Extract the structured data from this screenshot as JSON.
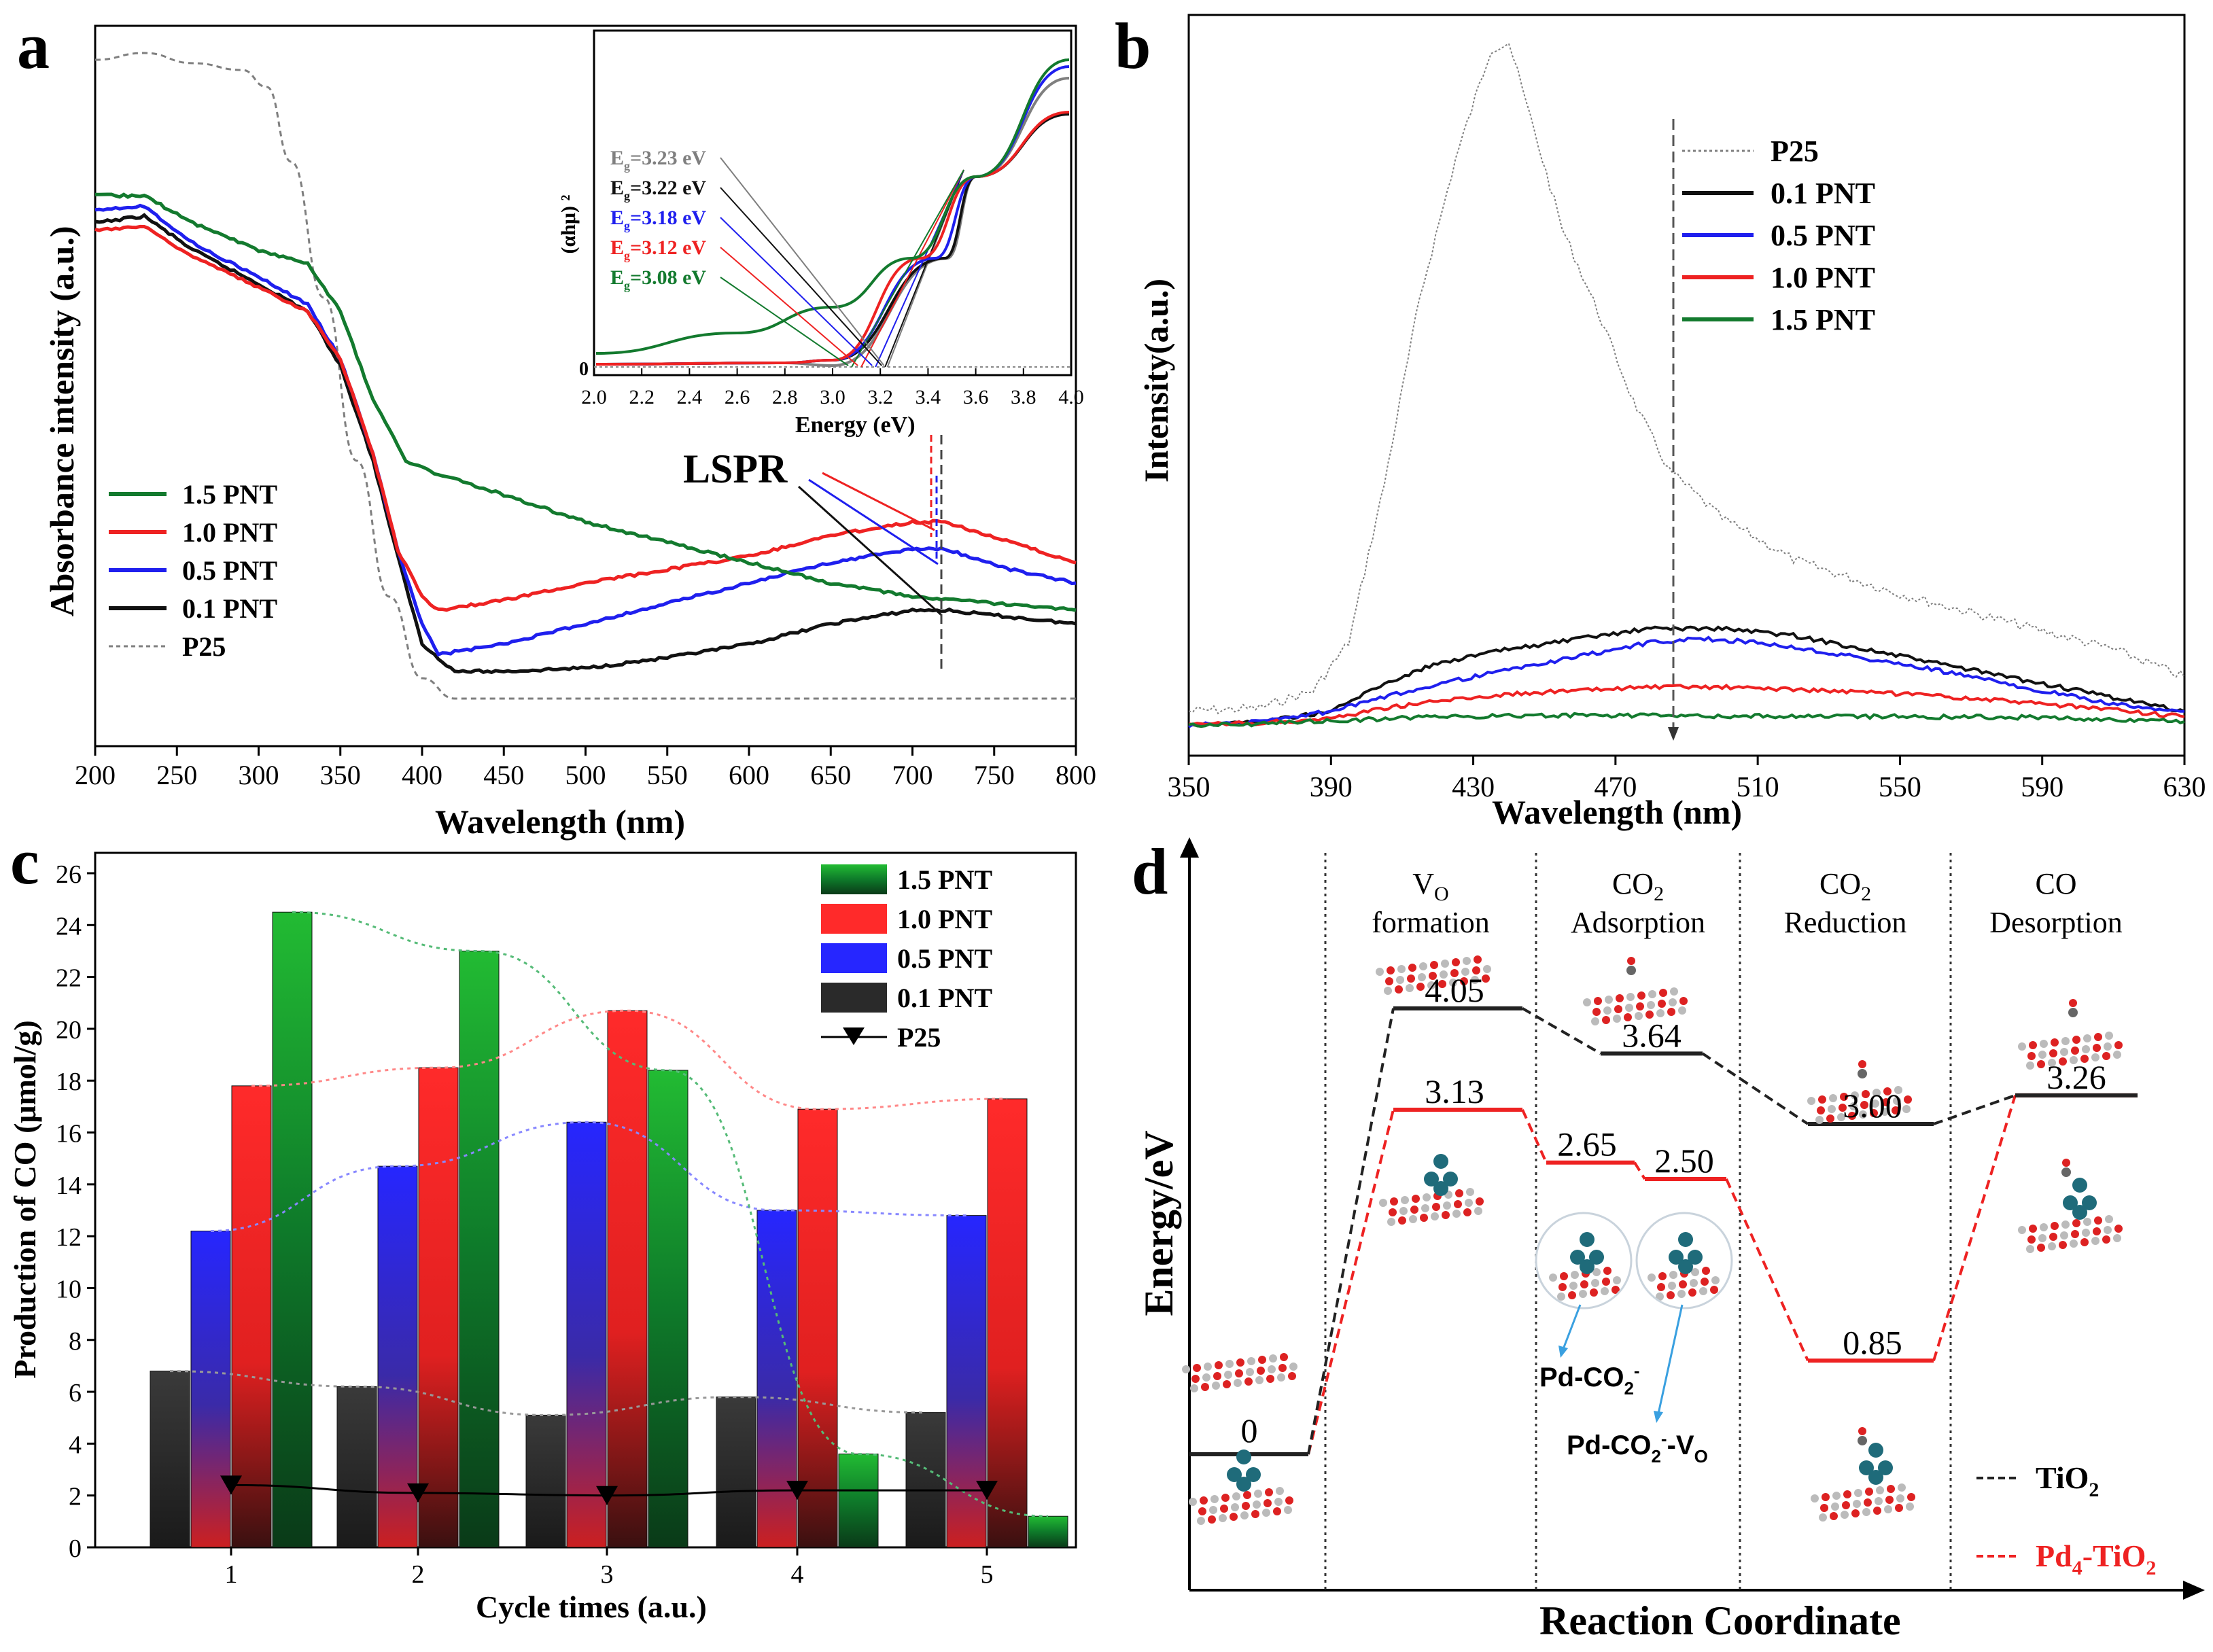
{
  "colors": {
    "p25": "#7f7f7f",
    "pnt01": "#111111",
    "pnt05": "#1f1fee",
    "pnt10": "#ee2222",
    "pnt15": "#137a2e",
    "arrow_blue": "#3aa0e0",
    "tio2": "#222222",
    "pd4": "#ee2222"
  },
  "panel_letters": {
    "a": "a",
    "b": "b",
    "c": "c",
    "d": "d"
  },
  "chart_data": [
    {
      "id": "a",
      "type": "line",
      "xlabel": "Wavelength (nm)",
      "ylabel": "Absorbance intensity (a.u.)",
      "xlim": [
        200,
        800
      ],
      "ylim": [
        0,
        1.0
      ],
      "xticks": [
        "200",
        "250",
        "300",
        "350",
        "400",
        "450",
        "500",
        "550",
        "600",
        "650",
        "700",
        "750",
        "800"
      ],
      "legend": [
        "1.5 PNT",
        "1.0 PNT",
        "0.5 PNT",
        "0.1 PNT",
        "P25"
      ],
      "annotation": "LSPR",
      "series": [
        {
          "name": "P25",
          "x": [
            200,
            230,
            260,
            290,
            305,
            320,
            340,
            360,
            380,
            400,
            420,
            450,
            500,
            600,
            700,
            800
          ],
          "y": [
            0.97,
            0.98,
            0.965,
            0.955,
            0.93,
            0.82,
            0.62,
            0.38,
            0.18,
            0.06,
            0.03,
            0.03,
            0.03,
            0.03,
            0.03,
            0.03
          ]
        },
        {
          "name": "0.1 PNT",
          "x": [
            200,
            230,
            260,
            300,
            330,
            350,
            370,
            385,
            400,
            420,
            450,
            500,
            550,
            600,
            650,
            700,
            720,
            760,
            800
          ],
          "y": [
            0.73,
            0.74,
            0.69,
            0.64,
            0.6,
            0.52,
            0.38,
            0.24,
            0.11,
            0.07,
            0.07,
            0.075,
            0.09,
            0.11,
            0.14,
            0.16,
            0.16,
            0.15,
            0.14
          ]
        },
        {
          "name": "0.5 PNT",
          "x": [
            200,
            230,
            260,
            300,
            330,
            350,
            370,
            385,
            400,
            410,
            450,
            500,
            550,
            600,
            650,
            700,
            720,
            760,
            800
          ],
          "y": [
            0.75,
            0.755,
            0.7,
            0.65,
            0.61,
            0.53,
            0.39,
            0.25,
            0.14,
            0.095,
            0.11,
            0.14,
            0.17,
            0.2,
            0.23,
            0.25,
            0.25,
            0.22,
            0.2
          ]
        },
        {
          "name": "1.0 PNT",
          "x": [
            200,
            230,
            260,
            300,
            330,
            350,
            370,
            385,
            400,
            410,
            450,
            500,
            550,
            600,
            650,
            700,
            720,
            760,
            800
          ],
          "y": [
            0.72,
            0.725,
            0.68,
            0.635,
            0.6,
            0.53,
            0.39,
            0.25,
            0.18,
            0.16,
            0.175,
            0.2,
            0.22,
            0.24,
            0.27,
            0.29,
            0.29,
            0.26,
            0.23
          ]
        },
        {
          "name": "1.5 PNT",
          "x": [
            200,
            230,
            260,
            300,
            330,
            350,
            370,
            390,
            410,
            450,
            500,
            550,
            600,
            650,
            700,
            750,
            800
          ],
          "y": [
            0.77,
            0.77,
            0.73,
            0.69,
            0.67,
            0.6,
            0.47,
            0.38,
            0.36,
            0.33,
            0.29,
            0.26,
            0.23,
            0.2,
            0.18,
            0.17,
            0.16
          ]
        }
      ],
      "inset": {
        "xlabel": "Energy (eV)",
        "ylabel": "(αhμ) ²",
        "xlim": [
          2.0,
          4.0
        ],
        "xticks": [
          "2.0",
          "2.2",
          "2.4",
          "2.6",
          "2.8",
          "3.0",
          "3.2",
          "3.4",
          "3.6",
          "3.8",
          "4.0"
        ],
        "zero_label": "0",
        "bandgaps": [
          {
            "label": "3.23 eV",
            "value": 3.23,
            "series": "P25"
          },
          {
            "label": "3.22 eV",
            "value": 3.22,
            "series": "0.1 PNT"
          },
          {
            "label": "3.18 eV",
            "value": 3.18,
            "series": "0.5 PNT"
          },
          {
            "label": "3.12 eV",
            "value": 3.12,
            "series": "1.0 PNT"
          },
          {
            "label": "3.08 eV",
            "value": 3.08,
            "series": "1.5 PNT"
          }
        ],
        "eg_symbol": "E",
        "eg_subscript": "g",
        "eg_eq": "="
      }
    },
    {
      "id": "b",
      "type": "line",
      "xlabel": "Wavelength (nm)",
      "ylabel": "Intensity(a.u.)",
      "xlim": [
        350,
        630
      ],
      "ylim": [
        0,
        1.0
      ],
      "xticks": [
        "350",
        "390",
        "430",
        "470",
        "510",
        "550",
        "590",
        "630"
      ],
      "legend": [
        "P25",
        "0.1 PNT",
        "0.5 PNT",
        "1.0 PNT",
        "1.5 PNT"
      ],
      "marker_x": 486,
      "series": [
        {
          "name": "P25",
          "x": [
            350,
            370,
            385,
            395,
            405,
            415,
            425,
            435,
            440,
            445,
            455,
            465,
            475,
            485,
            500,
            520,
            550,
            580,
            610,
            630
          ],
          "y": [
            0.02,
            0.025,
            0.05,
            0.12,
            0.35,
            0.62,
            0.82,
            0.98,
            0.99,
            0.9,
            0.72,
            0.6,
            0.47,
            0.37,
            0.3,
            0.24,
            0.19,
            0.15,
            0.11,
            0.07
          ]
        },
        {
          "name": "0.1 PNT",
          "x": [
            350,
            370,
            390,
            405,
            420,
            440,
            460,
            480,
            490,
            500,
            520,
            550,
            580,
            610,
            630
          ],
          "y": [
            0.0,
            0.005,
            0.02,
            0.06,
            0.09,
            0.11,
            0.125,
            0.14,
            0.14,
            0.14,
            0.13,
            0.1,
            0.07,
            0.04,
            0.02
          ]
        },
        {
          "name": "0.5 PNT",
          "x": [
            350,
            370,
            390,
            405,
            420,
            440,
            460,
            480,
            495,
            510,
            530,
            560,
            590,
            610,
            630
          ],
          "y": [
            0.0,
            0.005,
            0.02,
            0.04,
            0.06,
            0.08,
            0.1,
            0.12,
            0.125,
            0.12,
            0.105,
            0.08,
            0.05,
            0.03,
            0.02
          ]
        },
        {
          "name": "1.0 PNT",
          "x": [
            350,
            370,
            390,
            405,
            420,
            440,
            460,
            480,
            500,
            520,
            550,
            580,
            610,
            630
          ],
          "y": [
            0.0,
            0.003,
            0.01,
            0.025,
            0.035,
            0.045,
            0.05,
            0.055,
            0.055,
            0.052,
            0.045,
            0.035,
            0.022,
            0.012
          ]
        },
        {
          "name": "1.5 PNT",
          "x": [
            350,
            370,
            390,
            410,
            440,
            470,
            500,
            530,
            560,
            590,
            610,
            630
          ],
          "y": [
            0.0,
            0.002,
            0.006,
            0.01,
            0.014,
            0.014,
            0.013,
            0.013,
            0.012,
            0.011,
            0.008,
            0.005
          ]
        }
      ]
    },
    {
      "id": "c",
      "type": "bar",
      "xlabel": "Cycle times (a.u.)",
      "ylabel": "Production of CO (μmol/g)",
      "ylim": [
        0,
        26
      ],
      "yticks": [
        "0",
        "2",
        "4",
        "6",
        "8",
        "10",
        "12",
        "14",
        "16",
        "18",
        "20",
        "22",
        "24",
        "26"
      ],
      "categories": [
        "1",
        "2",
        "3",
        "4",
        "5"
      ],
      "series": [
        {
          "name": "0.1 PNT",
          "values": [
            6.8,
            6.2,
            5.1,
            5.8,
            5.2
          ]
        },
        {
          "name": "0.5 PNT",
          "values": [
            12.2,
            14.7,
            16.4,
            13.0,
            12.8
          ]
        },
        {
          "name": "1.0 PNT",
          "values": [
            17.8,
            18.5,
            20.7,
            16.9,
            17.3
          ]
        },
        {
          "name": "1.5 PNT",
          "values": [
            24.5,
            23.0,
            18.4,
            3.6,
            1.2
          ]
        }
      ],
      "line_series": {
        "name": "P25",
        "values": [
          2.4,
          2.1,
          2.0,
          2.2,
          2.2
        ]
      },
      "legend": [
        "1.5 PNT",
        "1.0 PNT",
        "0.5 PNT",
        "0.1 PNT",
        "P25"
      ]
    }
  ],
  "panel_d": {
    "ylabel": "Energy/eV",
    "xlabel": "Reaction Coordinate",
    "stages": [
      {
        "l1": "V",
        "l1sub": "O",
        "l2": "formation"
      },
      {
        "l1": "CO",
        "l1sub": "2",
        "l2": "Adsorption"
      },
      {
        "l1": "CO",
        "l1sub": "2",
        "l2": "Reduction"
      },
      {
        "l1": "CO",
        "l1sub": "",
        "l2": "Desorption"
      }
    ],
    "tio2_levels": [
      "0",
      "4.05",
      "3.64",
      "3.00",
      "3.26"
    ],
    "pd_levels": [
      "0",
      "3.13",
      "2.65",
      "2.50",
      "0.85",
      "3.26"
    ],
    "label_pdco2": "Pd-CO",
    "label_pdco2vo": "Pd-CO",
    "legend": [
      {
        "base": "TiO",
        "sub": "2",
        "rest": ""
      },
      {
        "base": "Pd",
        "sub": "4",
        "rest": "-TiO",
        "sub2": "2"
      }
    ]
  }
}
